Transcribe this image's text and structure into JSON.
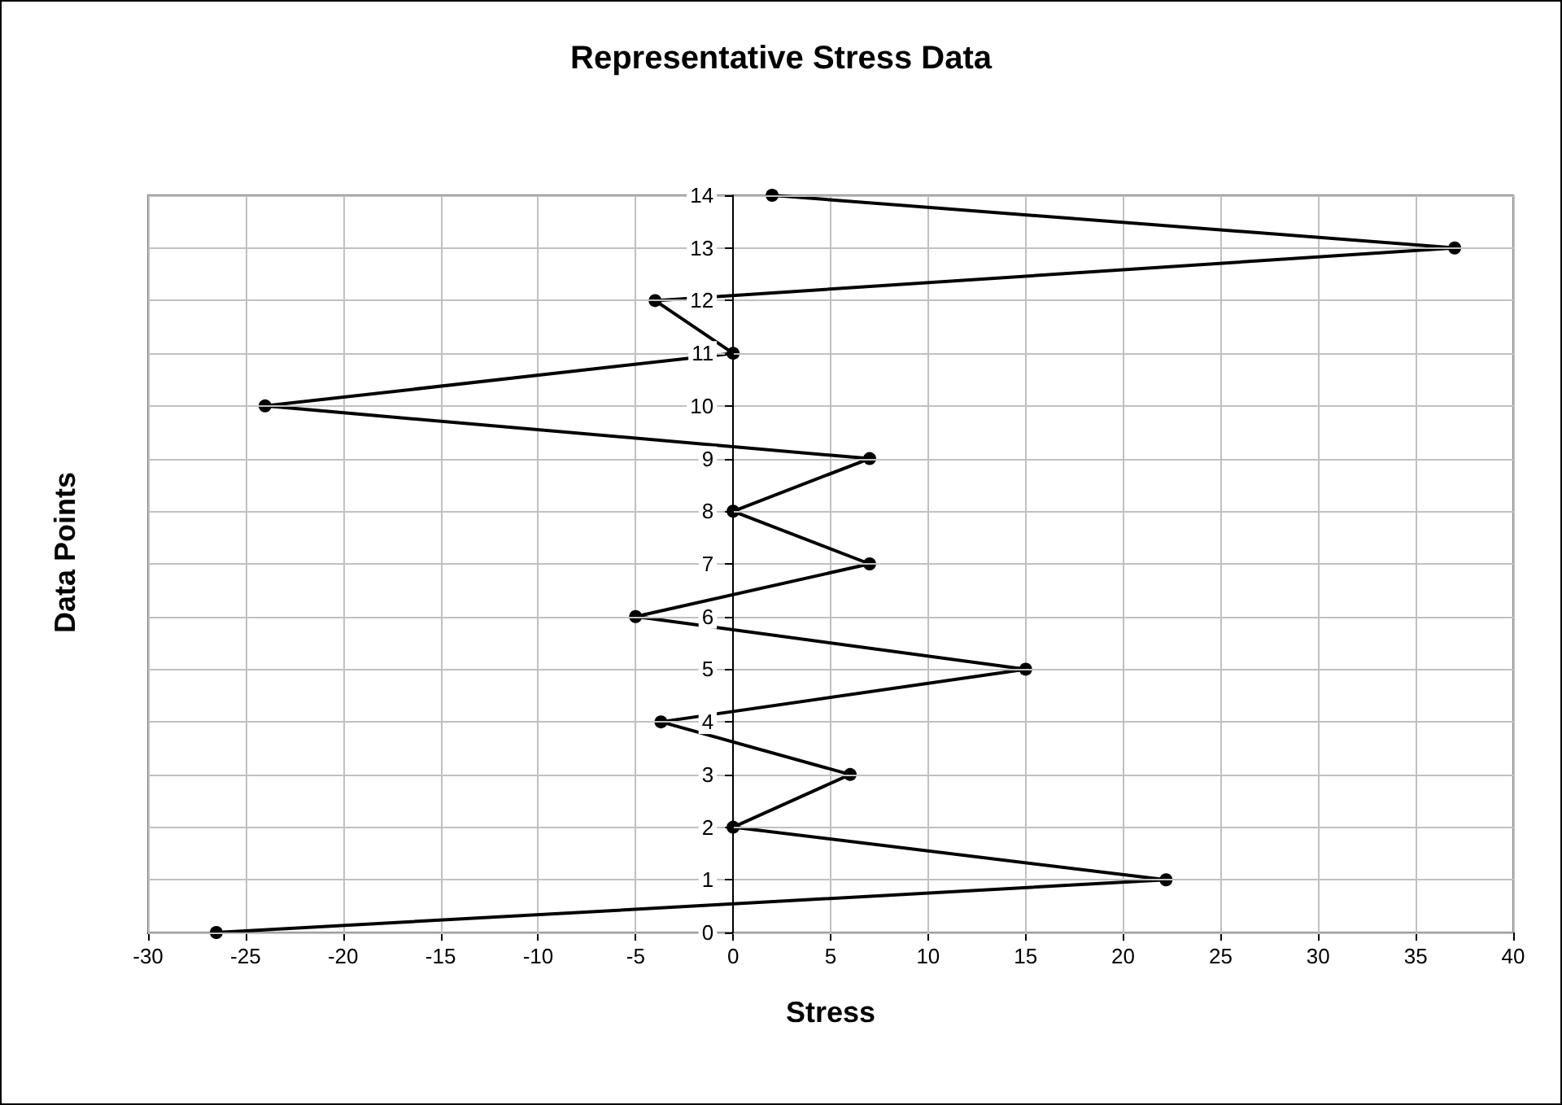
{
  "chart_data": {
    "type": "line",
    "title": "Representative Stress Data",
    "xlabel": "Stress",
    "ylabel": "Data Points",
    "x": [
      -26.5,
      22.2,
      0,
      6,
      -3.7,
      15,
      -5,
      7,
      0,
      7,
      -24,
      0,
      -4,
      37,
      2
    ],
    "series": [
      {
        "color": "#000000",
        "values": [
          0,
          1,
          2,
          3,
          4,
          5,
          6,
          7,
          8,
          9,
          10,
          11,
          12,
          13,
          14
        ]
      }
    ],
    "xlim": [
      -30,
      40
    ],
    "xticks": [
      -30,
      -25,
      -20,
      -15,
      -10,
      -5,
      0,
      5,
      10,
      15,
      20,
      25,
      30,
      35,
      40
    ],
    "ylim": [
      0,
      14
    ],
    "yticks": [
      0,
      1,
      2,
      3,
      4,
      5,
      6,
      7,
      8,
      9,
      10,
      11,
      12,
      13,
      14
    ],
    "grid": true,
    "marker": "circle",
    "line_style": "solid"
  }
}
